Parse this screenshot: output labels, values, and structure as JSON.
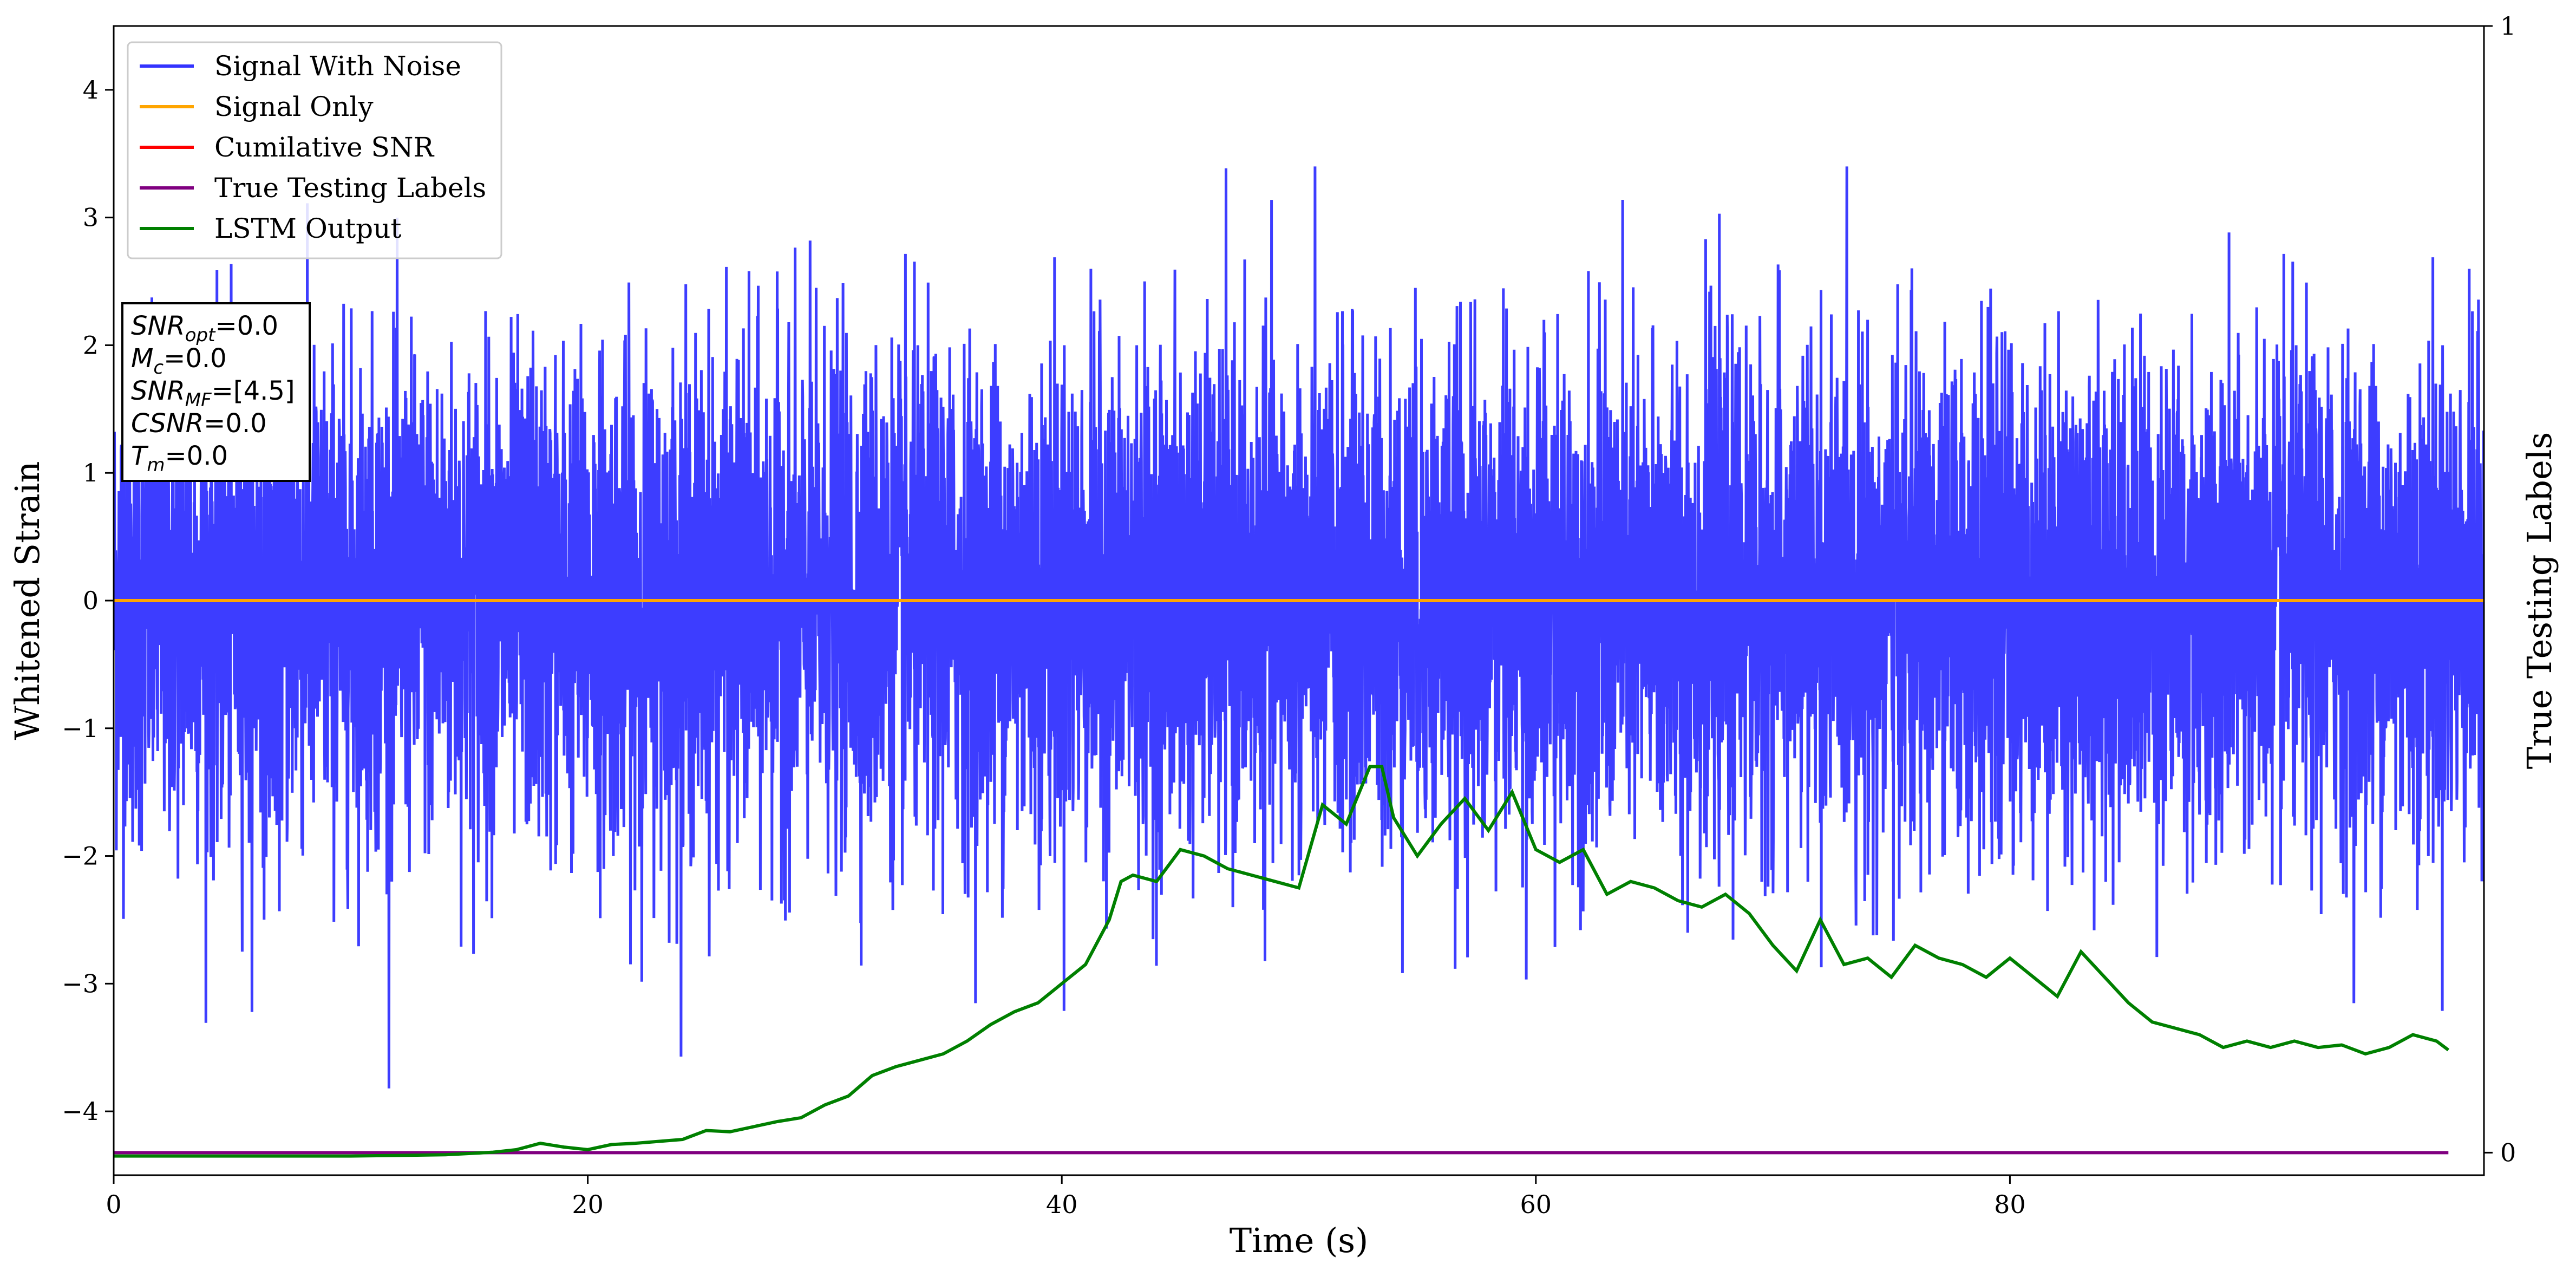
{
  "chart_data": {
    "type": "line",
    "xlabel": "Time (s)",
    "ylabel": "Whitened Strain",
    "y2label": "True Testing Labels",
    "xlim": [
      0,
      100
    ],
    "ylim": [
      -4.5,
      4.5
    ],
    "y2lim": [
      -0.02,
      1.0
    ],
    "x_ticks": [
      0,
      20,
      40,
      60,
      80
    ],
    "y_ticks": [
      -4,
      -3,
      -2,
      -1,
      0,
      1,
      2,
      3,
      4
    ],
    "y2_ticks": [
      0,
      1
    ],
    "grid": false,
    "legend": {
      "placement": "top-left",
      "entries": [
        {
          "name": "Signal With Noise",
          "color": "#3333ff"
        },
        {
          "name": "Signal Only",
          "color": "#ffa500"
        },
        {
          "name": "Cumilative SNR",
          "color": "#ff0000"
        },
        {
          "name": "True Testing Labels",
          "color": "#800080"
        },
        {
          "name": "LSTM Output",
          "color": "#008000"
        }
      ]
    },
    "series": [
      {
        "name": "Signal With Noise",
        "axis": "left",
        "color": "#3333ff",
        "kind": "noise",
        "x_range": [
          0,
          100
        ],
        "spread_range": [
          -4.1,
          3.4
        ]
      },
      {
        "name": "Signal Only",
        "axis": "left",
        "color": "#ffa500",
        "x": [
          0,
          100
        ],
        "y": [
          0,
          0
        ]
      },
      {
        "name": "True Testing Labels",
        "axis": "right",
        "color": "#800080",
        "x": [
          0,
          98.5
        ],
        "y": [
          0,
          0
        ]
      },
      {
        "name": "LSTM Output",
        "axis": "left",
        "color": "#008000",
        "x": [
          0,
          10,
          14,
          16,
          17,
          18,
          19,
          20,
          21,
          22,
          24,
          25,
          26,
          27,
          28,
          29,
          30,
          31,
          32,
          33,
          34,
          35,
          36,
          37,
          38,
          39,
          40,
          41,
          42,
          42.5,
          43,
          44,
          45,
          46,
          47,
          48,
          49,
          50,
          51,
          52,
          53,
          53.5,
          54,
          55,
          56,
          57,
          58,
          59,
          60,
          61,
          62,
          63,
          64,
          65,
          66,
          67,
          68,
          69,
          70,
          71,
          72,
          73,
          74,
          75,
          76,
          77,
          78,
          79,
          80,
          81,
          82,
          83,
          84,
          85,
          86,
          87,
          88,
          89,
          90,
          91,
          92,
          93,
          94,
          95,
          96,
          97,
          98,
          98.5
        ],
        "y": [
          -4.35,
          -4.35,
          -4.34,
          -4.32,
          -4.3,
          -4.25,
          -4.28,
          -4.3,
          -4.26,
          -4.25,
          -4.22,
          -4.15,
          -4.16,
          -4.12,
          -4.08,
          -4.05,
          -3.95,
          -3.88,
          -3.72,
          -3.65,
          -3.6,
          -3.55,
          -3.45,
          -3.32,
          -3.22,
          -3.15,
          -3.0,
          -2.85,
          -2.5,
          -2.2,
          -2.15,
          -2.2,
          -1.95,
          -2.0,
          -2.1,
          -2.15,
          -2.2,
          -2.25,
          -1.6,
          -1.75,
          -1.3,
          -1.3,
          -1.7,
          -2.0,
          -1.75,
          -1.55,
          -1.8,
          -1.5,
          -1.95,
          -2.05,
          -1.95,
          -2.3,
          -2.2,
          -2.25,
          -2.35,
          -2.4,
          -2.3,
          -2.45,
          -2.7,
          -2.9,
          -2.5,
          -2.85,
          -2.8,
          -2.95,
          -2.7,
          -2.8,
          -2.85,
          -2.95,
          -2.8,
          -2.95,
          -3.1,
          -2.75,
          -2.95,
          -3.15,
          -3.3,
          -3.35,
          -3.4,
          -3.5,
          -3.45,
          -3.5,
          -3.45,
          -3.5,
          -3.48,
          -3.55,
          -3.5,
          -3.4,
          -3.45,
          -3.52
        ]
      }
    ],
    "annotation": {
      "placement": "upper-left",
      "lines": [
        {
          "sym": "SNR",
          "sub": "opt",
          "val": "=0.0"
        },
        {
          "sym": "M",
          "sub": "c",
          "val": "=0.0"
        },
        {
          "sym": "SNR",
          "sub": "MF",
          "val": "=[4.5]"
        },
        {
          "sym": "CSNR",
          "sub": "",
          "val": "=0.0"
        },
        {
          "sym": "T",
          "sub": "m",
          "val": "=0.0"
        }
      ]
    }
  }
}
